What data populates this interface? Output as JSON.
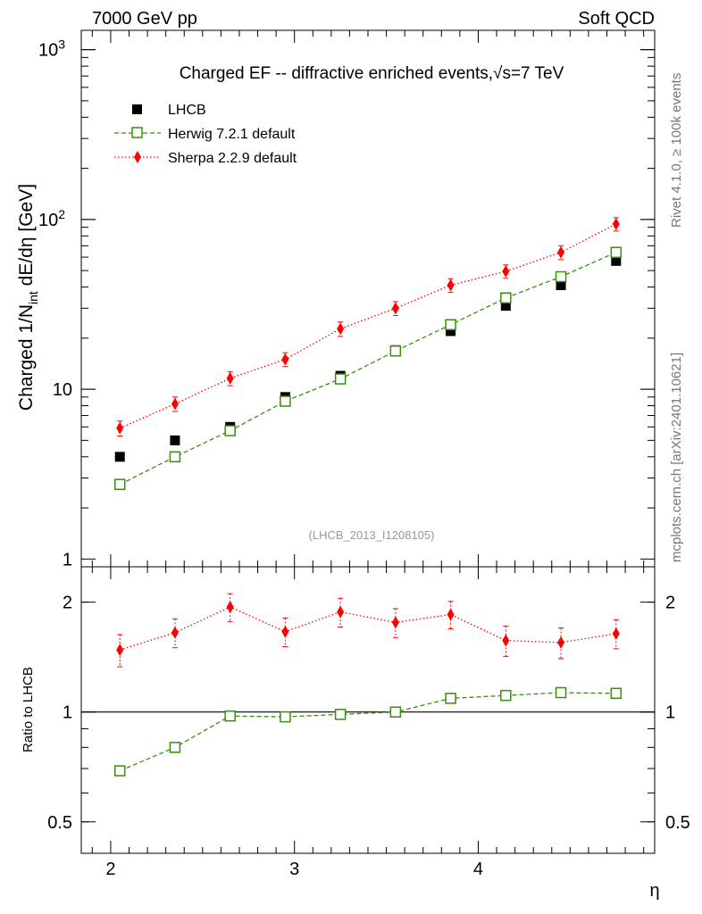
{
  "header": {
    "energy_label": "7000 GeV pp",
    "category_label": "Soft QCD"
  },
  "side_labels": {
    "rivet": "Rivet 4.1.0, ≥ 100k events",
    "mcplots": "mcplots.cern.ch [arXiv:2401.10621]"
  },
  "chart_data": [
    {
      "type": "scatter",
      "title": "Charged EF -- diffractive enriched events,√s=7 TeV",
      "analysis_label": "(LHCB_2013_I1208105)",
      "ylabel": "Charged 1/N_int  dE/dη [GeV]",
      "ylabel_parts": {
        "pre": "Charged 1/N",
        "sub": "int",
        "post": "   dE/dη [GeV]"
      },
      "xlabel": "η",
      "yscale": "log",
      "xlim": [
        1.84,
        4.96
      ],
      "ylim": [
        0.9,
        1300
      ],
      "y_ticks": [
        {
          "value": 1,
          "label": "1"
        },
        {
          "value": 10,
          "label": "10"
        },
        {
          "value": 100,
          "label": "10",
          "sup": "2"
        },
        {
          "value": 1000,
          "label": "10",
          "sup": "3"
        }
      ],
      "x": [
        2.05,
        2.35,
        2.65,
        2.95,
        3.25,
        3.55,
        3.85,
        4.15,
        4.45,
        4.75
      ],
      "series": [
        {
          "name": "LHCB",
          "marker": "filled-square",
          "color": "#000000",
          "linestyle": "none",
          "values": [
            4.0,
            5.0,
            6.0,
            9.0,
            12.0,
            17.0,
            22.0,
            31.0,
            41.0,
            57.0
          ],
          "errors": [
            0.1,
            0.1,
            0.1,
            0.2,
            0.2,
            0.3,
            0.4,
            0.5,
            0.7,
            1.0
          ]
        },
        {
          "name": "Herwig 7.2.1 default",
          "marker": "open-square",
          "color": "#3a8d10",
          "linestyle": "dashed",
          "values": [
            2.75,
            4.0,
            5.7,
            8.5,
            11.5,
            16.8,
            24.0,
            34.5,
            46.0,
            64.0
          ],
          "errors": [
            0.05,
            0.07,
            0.1,
            0.15,
            0.2,
            0.3,
            0.4,
            0.5,
            0.7,
            1.0
          ]
        },
        {
          "name": "Sherpa 2.2.9 default",
          "marker": "diamond",
          "color": "#ff0000",
          "linestyle": "dotted",
          "values": [
            5.9,
            8.2,
            11.6,
            15.0,
            22.7,
            30.0,
            41.0,
            49.5,
            64.0,
            94.0
          ],
          "errors": [
            0.6,
            0.8,
            1.1,
            1.4,
            2.2,
            2.8,
            3.8,
            4.5,
            6.0,
            8.5
          ]
        }
      ]
    },
    {
      "type": "scatter",
      "title": "",
      "ylabel": "Ratio to LHCB",
      "xlabel": "η",
      "yscale": "log",
      "xlim": [
        1.84,
        4.96
      ],
      "ylim": [
        0.41,
        2.5
      ],
      "y_ticks": [
        {
          "value": 0.5,
          "label": "0.5"
        },
        {
          "value": 1,
          "label": "1"
        },
        {
          "value": 2,
          "label": "2"
        }
      ],
      "x_ticks": [
        {
          "value": 2,
          "label": "2"
        },
        {
          "value": 3,
          "label": "3"
        },
        {
          "value": 4,
          "label": "4"
        }
      ],
      "reference_line": 1,
      "x": [
        2.05,
        2.35,
        2.65,
        2.95,
        3.25,
        3.55,
        3.85,
        4.15,
        4.45,
        4.75
      ],
      "series": [
        {
          "name": "Herwig 7.2.1 default",
          "marker": "open-square",
          "color": "#3a8d10",
          "linestyle": "dashed",
          "values": [
            0.69,
            0.8,
            0.975,
            0.97,
            0.985,
            1.0,
            1.09,
            1.11,
            1.13,
            1.125
          ],
          "errors": [
            0.01,
            0.01,
            0.01,
            0.01,
            0.01,
            0.01,
            0.01,
            0.01,
            0.01,
            0.01
          ]
        },
        {
          "name": "Sherpa 2.2.9 default",
          "marker": "diamond",
          "color": "#ff0000",
          "linestyle": "dotted",
          "values": [
            1.48,
            1.65,
            1.94,
            1.66,
            1.88,
            1.76,
            1.85,
            1.57,
            1.55,
            1.64
          ],
          "errors": [
            0.15,
            0.15,
            0.17,
            0.15,
            0.17,
            0.16,
            0.16,
            0.15,
            0.15,
            0.15
          ]
        }
      ]
    }
  ]
}
